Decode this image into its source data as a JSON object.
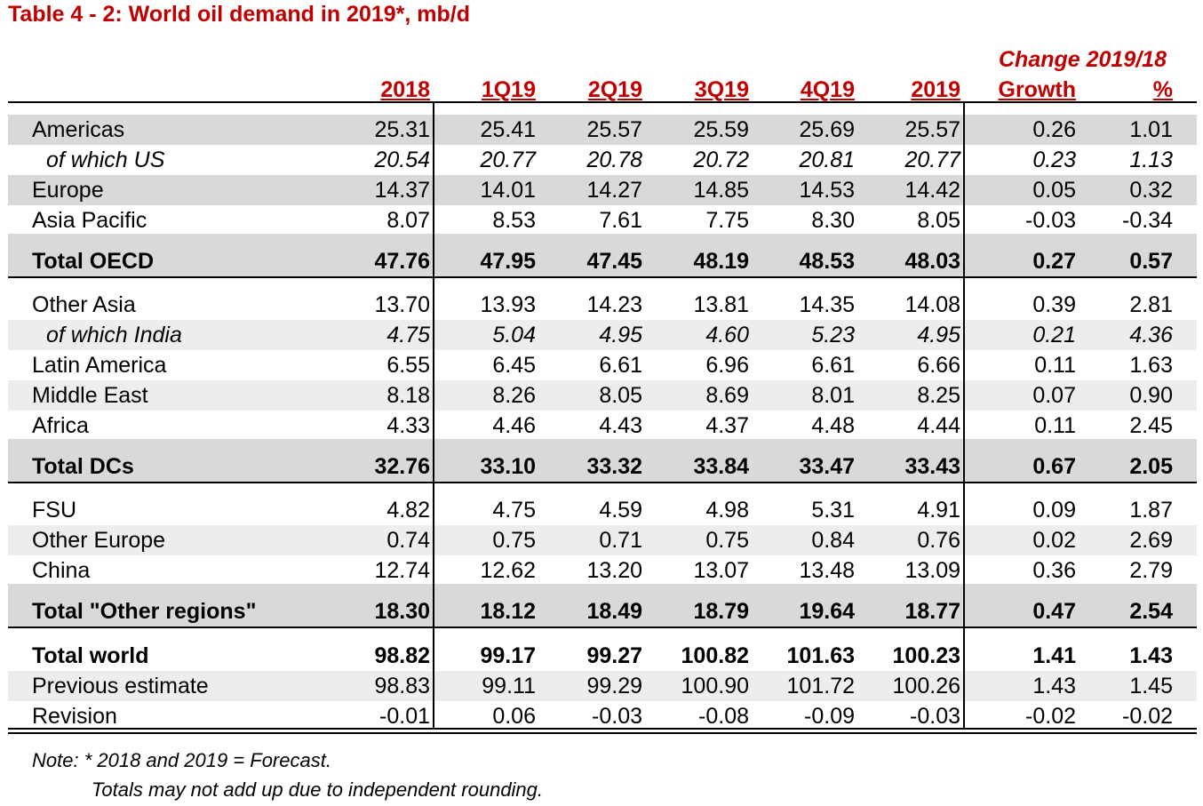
{
  "title": "Table 4 - 2: World oil demand in 2019*, mb/d",
  "header": {
    "change_group": "Change 2019/18",
    "columns": [
      "2018",
      "1Q19",
      "2Q19",
      "3Q19",
      "4Q19",
      "2019",
      "Growth",
      "%"
    ]
  },
  "rows": [
    {
      "label": "Americas",
      "values": [
        "25.31",
        "25.41",
        "25.57",
        "25.59",
        "25.69",
        "25.57",
        "0.26",
        "1.01"
      ]
    },
    {
      "label": "of which US",
      "values": [
        "20.54",
        "20.77",
        "20.78",
        "20.72",
        "20.81",
        "20.77",
        "0.23",
        "1.13"
      ]
    },
    {
      "label": "Europe",
      "values": [
        "14.37",
        "14.01",
        "14.27",
        "14.85",
        "14.53",
        "14.42",
        "0.05",
        "0.32"
      ]
    },
    {
      "label": "Asia Pacific",
      "values": [
        "8.07",
        "8.53",
        "7.61",
        "7.75",
        "8.30",
        "8.05",
        "-0.03",
        "-0.34"
      ]
    },
    {
      "label": "Total OECD",
      "values": [
        "47.76",
        "47.95",
        "47.45",
        "48.19",
        "48.53",
        "48.03",
        "0.27",
        "0.57"
      ]
    },
    {
      "label": "Other Asia",
      "values": [
        "13.70",
        "13.93",
        "14.23",
        "13.81",
        "14.35",
        "14.08",
        "0.39",
        "2.81"
      ]
    },
    {
      "label": "of which India",
      "values": [
        "4.75",
        "5.04",
        "4.95",
        "4.60",
        "5.23",
        "4.95",
        "0.21",
        "4.36"
      ]
    },
    {
      "label": "Latin America",
      "values": [
        "6.55",
        "6.45",
        "6.61",
        "6.96",
        "6.61",
        "6.66",
        "0.11",
        "1.63"
      ]
    },
    {
      "label": "Middle East",
      "values": [
        "8.18",
        "8.26",
        "8.05",
        "8.69",
        "8.01",
        "8.25",
        "0.07",
        "0.90"
      ]
    },
    {
      "label": "Africa",
      "values": [
        "4.33",
        "4.46",
        "4.43",
        "4.37",
        "4.48",
        "4.44",
        "0.11",
        "2.45"
      ]
    },
    {
      "label": "Total DCs",
      "values": [
        "32.76",
        "33.10",
        "33.32",
        "33.84",
        "33.47",
        "33.43",
        "0.67",
        "2.05"
      ]
    },
    {
      "label": "FSU",
      "values": [
        "4.82",
        "4.75",
        "4.59",
        "4.98",
        "5.31",
        "4.91",
        "0.09",
        "1.87"
      ]
    },
    {
      "label": "Other Europe",
      "values": [
        "0.74",
        "0.75",
        "0.71",
        "0.75",
        "0.84",
        "0.76",
        "0.02",
        "2.69"
      ]
    },
    {
      "label": "China",
      "values": [
        "12.74",
        "12.62",
        "13.20",
        "13.07",
        "13.48",
        "13.09",
        "0.36",
        "2.79"
      ]
    },
    {
      "label": "Total \"Other regions\"",
      "values": [
        "18.30",
        "18.12",
        "18.49",
        "18.79",
        "19.64",
        "18.77",
        "0.47",
        "2.54"
      ]
    },
    {
      "label": "Total world",
      "values": [
        "98.82",
        "99.17",
        "99.27",
        "100.82",
        "101.63",
        "100.23",
        "1.41",
        "1.43"
      ]
    },
    {
      "label": "Previous estimate",
      "values": [
        "98.83",
        "99.11",
        "99.29",
        "100.90",
        "101.72",
        "100.26",
        "1.43",
        "1.45"
      ]
    },
    {
      "label": "Revision",
      "values": [
        "-0.01",
        "0.06",
        "-0.03",
        "-0.08",
        "-0.09",
        "-0.03",
        "-0.02",
        "-0.02"
      ]
    }
  ],
  "notes": {
    "line1": "Note: * 2018 and 2019 = Forecast.",
    "line2": "Totals may not add up due to independent rounding."
  },
  "colors": {
    "accent": "#c00000",
    "shade": "#d9d9d9",
    "light_shade": "#ededed"
  }
}
